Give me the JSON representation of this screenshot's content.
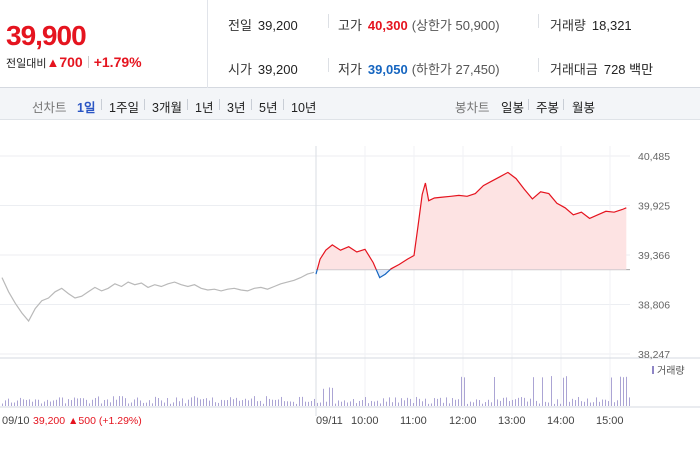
{
  "quote": {
    "price": "39,900",
    "change_label": "전일대비",
    "change_amount": "700",
    "change_percent": "+1.79%",
    "prev_close_label": "전일",
    "prev_close": "39,200",
    "open_label": "시가",
    "open": "39,200",
    "high_label": "고가",
    "high": "40,300",
    "upper_limit": "(상한가 50,900)",
    "low_label": "저가",
    "low": "39,050",
    "lower_limit": "(하한가 27,450)",
    "volume_label": "거래량",
    "volume": "18,321",
    "value_label": "거래대금",
    "value": "728 백만"
  },
  "toolbar": {
    "line_label": "선차트",
    "line_periods": [
      "1일",
      "1주일",
      "3개월",
      "1년",
      "3년",
      "5년",
      "10년"
    ],
    "candle_label": "봉차트",
    "candle_periods": [
      "일봉",
      "주봉",
      "월봉"
    ],
    "active": "1일"
  },
  "colors": {
    "up": "#e5141f",
    "down": "#1565c0",
    "prev_day_line": "#b9b9b9",
    "volume": "#8f86c6"
  },
  "chart_data": {
    "type": "line",
    "y_ticks": [
      "40,485",
      "39,925",
      "39,366",
      "38,806",
      "38,247"
    ],
    "y_tick_values": [
      40485,
      39925,
      39366,
      38806,
      38247
    ],
    "ylim": [
      38247,
      40485
    ],
    "x_labels": [
      "09/10",
      "09/11",
      "10:00",
      "11:00",
      "12:00",
      "13:00",
      "14:00",
      "15:00"
    ],
    "base_price": 39200,
    "prev_day_note": "39,200 ▲500 (+1.29%)",
    "prev_day_label": "09/10",
    "prev_day_series": [
      39110,
      38950,
      38820,
      38710,
      38620,
      38760,
      38850,
      38880,
      38950,
      38990,
      38930,
      38880,
      38900,
      38950,
      39000,
      38960,
      38990,
      39040,
      39010,
      39060,
      39030,
      39050,
      39000,
      39030,
      39010,
      39040,
      39060,
      39030,
      39010,
      39030,
      38990,
      38970,
      38980,
      38960,
      38980,
      38990,
      38970,
      38960,
      38990,
      39000,
      38980,
      39010,
      39040,
      39060,
      39080,
      39110,
      39150,
      39170
    ],
    "today_series": [
      [
        "09:00",
        39150
      ],
      [
        "09:05",
        39320
      ],
      [
        "09:12",
        39420
      ],
      [
        "09:20",
        39480
      ],
      [
        "09:30",
        39420
      ],
      [
        "09:40",
        39460
      ],
      [
        "09:50",
        39400
      ],
      [
        "10:00",
        39430
      ],
      [
        "10:10",
        39280
      ],
      [
        "10:18",
        39110
      ],
      [
        "10:25",
        39150
      ],
      [
        "10:32",
        39210
      ],
      [
        "10:42",
        39260
      ],
      [
        "10:52",
        39320
      ],
      [
        "11:00",
        39360
      ],
      [
        "11:05",
        39700
      ],
      [
        "11:10",
        40050
      ],
      [
        "11:14",
        40180
      ],
      [
        "11:18",
        39980
      ],
      [
        "11:25",
        40010
      ],
      [
        "11:35",
        40020
      ],
      [
        "11:45",
        40030
      ],
      [
        "11:55",
        40040
      ],
      [
        "12:05",
        40030
      ],
      [
        "12:15",
        40060
      ],
      [
        "12:25",
        40150
      ],
      [
        "12:35",
        40200
      ],
      [
        "12:45",
        40250
      ],
      [
        "12:55",
        40300
      ],
      [
        "13:05",
        40230
      ],
      [
        "13:15",
        40110
      ],
      [
        "13:25",
        40000
      ],
      [
        "13:35",
        40080
      ],
      [
        "13:45",
        40060
      ],
      [
        "13:55",
        39950
      ],
      [
        "14:05",
        39900
      ],
      [
        "14:15",
        39820
      ],
      [
        "14:25",
        39850
      ],
      [
        "14:35",
        39780
      ],
      [
        "14:45",
        39820
      ],
      [
        "14:55",
        39860
      ],
      [
        "15:05",
        39850
      ],
      [
        "15:15",
        39880
      ],
      [
        "15:20",
        39900
      ]
    ],
    "volume_label": "거래량",
    "grid": true
  }
}
